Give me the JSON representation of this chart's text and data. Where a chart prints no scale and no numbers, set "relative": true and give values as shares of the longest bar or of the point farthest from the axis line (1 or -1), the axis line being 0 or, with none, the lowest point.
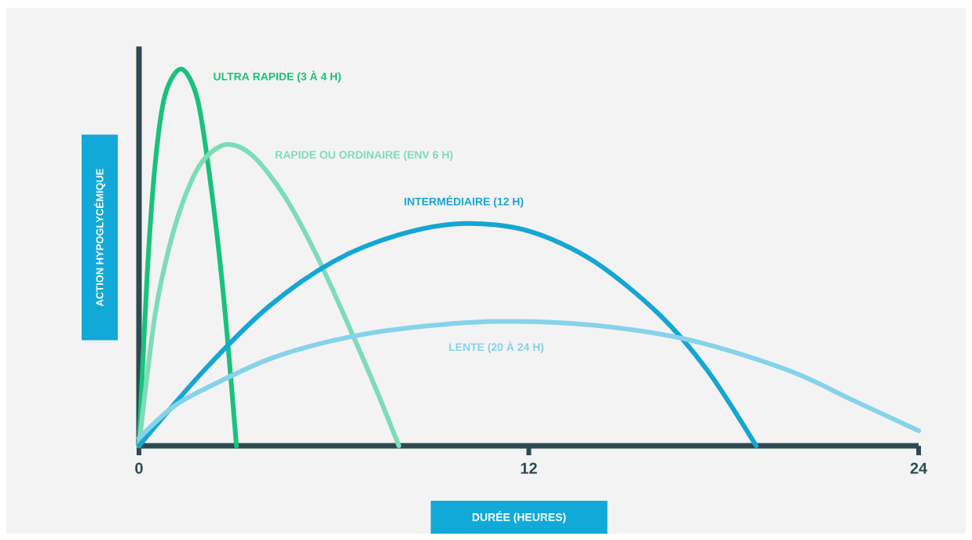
{
  "chart_data": {
    "type": "line",
    "xlabel": "DURÉE (HEURES)",
    "ylabel": "ACTION HYPOGLYCÉMIQUE",
    "relative": true,
    "xlim": [
      0,
      24
    ],
    "xticks": [
      0,
      12,
      24
    ],
    "series": [
      {
        "name": "ULTRA RAPIDE (3 À 4 H)",
        "color": "#18c27c",
        "x": [
          0,
          0.25,
          0.5,
          0.8,
          1.3,
          1.8,
          2.2,
          2.6,
          3.0
        ],
        "values": [
          0,
          0.45,
          0.75,
          0.93,
          1,
          0.92,
          0.7,
          0.4,
          0
        ]
      },
      {
        "name": "RAPIDE OU ORDINAIRE (ENV 6 H)",
        "color": "#7ddcb8",
        "x": [
          0,
          0.5,
          1,
          1.5,
          2,
          2.7,
          3.5,
          4.5,
          5.5,
          6.5,
          7.3,
          8.0
        ],
        "values": [
          0,
          0.35,
          0.55,
          0.68,
          0.76,
          0.8,
          0.77,
          0.66,
          0.5,
          0.31,
          0.15,
          0
        ]
      },
      {
        "name": "INTERMÉDIAIRE (12 H)",
        "color": "#14a6d4",
        "x": [
          0,
          2,
          4,
          6,
          8,
          10,
          12,
          14,
          16,
          17.5,
          19
        ],
        "values": [
          0,
          0.2,
          0.37,
          0.49,
          0.56,
          0.59,
          0.57,
          0.49,
          0.35,
          0.2,
          0
        ]
      },
      {
        "name": "LENTE (20 À 24 H)",
        "color": "#85d3ea",
        "x": [
          0,
          1,
          2,
          4,
          6,
          8,
          11,
          14,
          17,
          20,
          22,
          24
        ],
        "values": [
          0.02,
          0.1,
          0.15,
          0.23,
          0.28,
          0.31,
          0.33,
          0.32,
          0.28,
          0.2,
          0.12,
          0.04
        ]
      }
    ]
  }
}
